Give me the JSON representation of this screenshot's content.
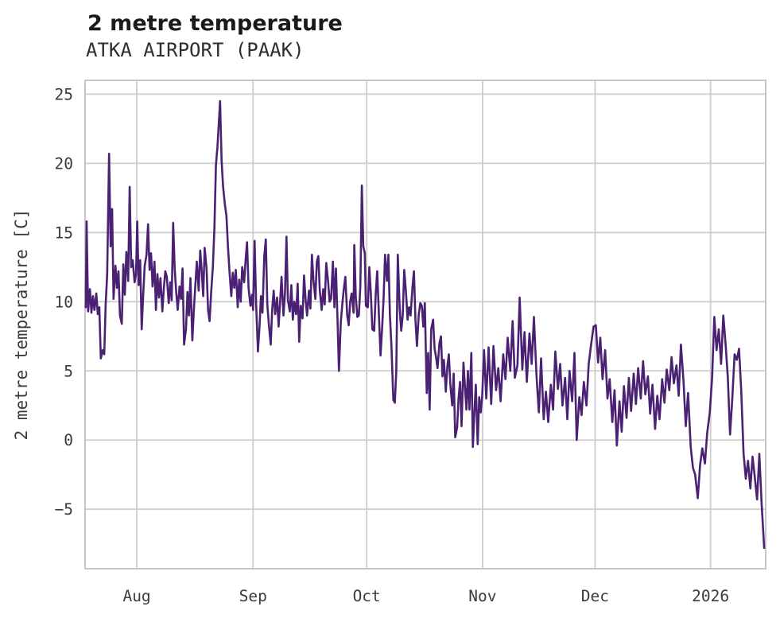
{
  "chart_data": {
    "type": "line",
    "title": "2 metre temperature",
    "subtitle": "ATKA AIRPORT (PAAK)",
    "xlabel": "",
    "ylabel": "2 metre temperature [C]",
    "x_unit": "days from start of plot (left edge ≈ mid-July 2025, right edge ≈ mid-January 2026)",
    "xlim": [
      0,
      181.5
    ],
    "ylim": [
      -9.3,
      26.0
    ],
    "grid": true,
    "legend": "none",
    "line_color": "#4b2173",
    "grid_color": "#cdcdcd",
    "background_color": "#ffffff",
    "y_ticks": [
      {
        "value": -5,
        "label": "−5"
      },
      {
        "value": 0,
        "label": "0"
      },
      {
        "value": 5,
        "label": "5"
      },
      {
        "value": 10,
        "label": "10"
      },
      {
        "value": 15,
        "label": "15"
      },
      {
        "value": 20,
        "label": "20"
      },
      {
        "value": 25,
        "label": "25"
      }
    ],
    "x_ticks": [
      {
        "day": 13.8,
        "label": "Aug"
      },
      {
        "day": 44.8,
        "label": "Sep"
      },
      {
        "day": 75.1,
        "label": "Oct"
      },
      {
        "day": 106.0,
        "label": "Nov"
      },
      {
        "day": 136.0,
        "label": "Dec"
      },
      {
        "day": 166.8,
        "label": "2026"
      }
    ],
    "series": [
      {
        "name": "2 metre temperature",
        "days": [
          0.2,
          0.4,
          0.8,
          1.3,
          1.7,
          2.1,
          2.5,
          3.0,
          3.4,
          3.8,
          4.2,
          4.7,
          5.1,
          5.5,
          5.9,
          6.4,
          6.8,
          7.2,
          7.6,
          8.1,
          8.5,
          8.9,
          9.3,
          9.8,
          10.2,
          10.6,
          11.0,
          11.5,
          11.9,
          12.3,
          12.7,
          13.2,
          13.6,
          13.9,
          14.3,
          14.7,
          15.1,
          15.5,
          15.9,
          16.4,
          16.8,
          17.2,
          17.6,
          18.0,
          18.5,
          18.9,
          19.3,
          19.7,
          20.1,
          20.6,
          21.0,
          21.4,
          21.8,
          22.3,
          22.7,
          23.1,
          23.5,
          23.9,
          24.3,
          24.7,
          25.2,
          25.6,
          26.0,
          26.4,
          26.9,
          27.3,
          27.7,
          28.1,
          28.6,
          29.0,
          29.4,
          29.8,
          30.3,
          30.7,
          31.1,
          31.5,
          31.9,
          32.4,
          32.8,
          33.2,
          33.6,
          34.1,
          34.5,
          34.9,
          35.3,
          35.7,
          36.0,
          36.4,
          36.8,
          37.3,
          37.7,
          38.1,
          38.5,
          39.0,
          39.4,
          39.8,
          40.2,
          40.7,
          41.1,
          41.5,
          41.9,
          42.4,
          42.8,
          43.2,
          43.6,
          44.1,
          44.5,
          44.8,
          45.2,
          45.6,
          46.1,
          46.5,
          46.9,
          47.3,
          47.8,
          48.2,
          48.6,
          49.0,
          49.5,
          49.9,
          50.3,
          50.7,
          51.2,
          51.6,
          52.0,
          52.4,
          52.9,
          53.3,
          53.7,
          54.1,
          54.6,
          55.0,
          55.4,
          55.8,
          56.3,
          56.7,
          57.1,
          57.5,
          58.0,
          58.4,
          58.8,
          59.2,
          59.7,
          60.1,
          60.5,
          60.9,
          61.4,
          61.8,
          62.2,
          62.6,
          63.1,
          63.5,
          63.9,
          64.3,
          64.8,
          65.2,
          65.6,
          66.1,
          66.5,
          66.9,
          67.3,
          67.7,
          68.2,
          68.6,
          69.0,
          69.4,
          69.9,
          70.3,
          70.7,
          71.1,
          71.6,
          71.8,
          72.2,
          72.6,
          73.0,
          73.4,
          73.8,
          74.2,
          74.6,
          74.9,
          75.4,
          75.8,
          76.2,
          76.6,
          77.1,
          77.5,
          77.9,
          78.3,
          78.8,
          79.2,
          79.6,
          80.0,
          80.5,
          80.9,
          81.3,
          81.7,
          82.2,
          82.6,
          83.0,
          83.4,
          83.9,
          84.3,
          84.7,
          85.1,
          85.6,
          86.0,
          86.4,
          86.8,
          87.3,
          87.7,
          88.1,
          88.5,
          89.0,
          89.4,
          89.8,
          90.2,
          90.6,
          91.1,
          91.5,
          91.9,
          92.3,
          92.8,
          93.2,
          93.6,
          94.0,
          94.5,
          94.9,
          95.3,
          95.7,
          96.2,
          96.6,
          97.0,
          97.4,
          97.9,
          98.3,
          98.7,
          99.2,
          99.6,
          100.0,
          100.4,
          100.9,
          101.3,
          101.7,
          102.1,
          102.5,
          103.0,
          103.4,
          103.8,
          104.2,
          104.7,
          105.1,
          105.5,
          105.9,
          106.4,
          107.0,
          107.6,
          108.3,
          108.9,
          109.6,
          110.2,
          110.8,
          111.5,
          112.1,
          112.7,
          113.4,
          114.0,
          114.6,
          115.3,
          115.9,
          116.6,
          117.2,
          117.8,
          118.5,
          119.1,
          119.7,
          120.4,
          121.0,
          121.6,
          122.3,
          122.9,
          123.5,
          124.2,
          124.8,
          125.4,
          126.1,
          126.7,
          127.3,
          128.0,
          128.6,
          129.2,
          129.9,
          130.5,
          131.1,
          131.8,
          132.4,
          133.0,
          133.7,
          134.3,
          134.9,
          135.6,
          136.2,
          136.8,
          137.4,
          138.0,
          138.7,
          139.3,
          139.9,
          140.6,
          141.2,
          141.8,
          142.5,
          143.1,
          143.7,
          144.4,
          145.0,
          145.6,
          146.3,
          146.9,
          147.5,
          148.2,
          148.8,
          149.4,
          150.1,
          150.7,
          151.3,
          152.0,
          152.6,
          153.2,
          153.9,
          154.5,
          155.1,
          155.8,
          156.4,
          157.0,
          157.7,
          158.3,
          158.9,
          159.6,
          160.2,
          160.8,
          161.5,
          162.1,
          162.7,
          163.4,
          164.0,
          164.6,
          165.3,
          165.9,
          166.6,
          167.2,
          167.8,
          168.4,
          169.0,
          169.6,
          170.2,
          170.8,
          171.4,
          172.0,
          172.6,
          173.2,
          173.8,
          174.4,
          175.0,
          175.6,
          176.2,
          176.8,
          177.4,
          178.0,
          178.6,
          179.2,
          179.8,
          180.4,
          181.1
        ],
        "temps": [
          9.6,
          15.8,
          9.3,
          10.9,
          9.2,
          10.4,
          9.4,
          10.6,
          9.1,
          9.6,
          5.9,
          6.5,
          6.2,
          9.8,
          12.0,
          20.7,
          14.0,
          16.7,
          10.2,
          12.6,
          11.0,
          12.2,
          9.0,
          8.4,
          12.7,
          10.5,
          13.6,
          11.5,
          18.3,
          12.5,
          13.0,
          11.4,
          12.0,
          15.8,
          11.2,
          13.0,
          8.0,
          10.5,
          12.6,
          13.4,
          15.6,
          12.3,
          13.5,
          11.1,
          12.9,
          9.4,
          12.0,
          10.3,
          11.7,
          9.3,
          10.9,
          12.2,
          11.8,
          9.9,
          11.4,
          10.1,
          15.7,
          12.4,
          10.7,
          9.4,
          11.1,
          10.2,
          12.4,
          6.9,
          8.0,
          10.7,
          9.0,
          11.7,
          7.2,
          9.4,
          11.2,
          12.9,
          10.8,
          13.7,
          12.2,
          10.4,
          13.9,
          12.4,
          9.4,
          8.6,
          10.6,
          12.6,
          15.4,
          19.9,
          21.2,
          23.1,
          24.5,
          20.2,
          18.3,
          17.0,
          16.2,
          14.0,
          12.2,
          10.4,
          12.1,
          11.0,
          12.3,
          9.6,
          11.6,
          10.0,
          12.5,
          11.4,
          13.0,
          14.3,
          11.0,
          9.7,
          10.5,
          9.4,
          14.4,
          9.9,
          6.4,
          8.1,
          10.4,
          9.2,
          13.3,
          14.5,
          9.8,
          8.4,
          6.9,
          9.4,
          10.8,
          9.1,
          10.3,
          8.2,
          9.9,
          11.8,
          9.0,
          10.6,
          14.7,
          10.1,
          9.3,
          11.2,
          8.7,
          10.0,
          9.1,
          11.3,
          7.1,
          9.7,
          8.8,
          11.9,
          10.2,
          9.0,
          10.8,
          9.5,
          13.4,
          11.6,
          10.2,
          12.9,
          13.3,
          10.8,
          9.4,
          10.9,
          9.8,
          12.8,
          11.5,
          10.0,
          10.2,
          12.9,
          9.6,
          12.4,
          8.9,
          5.0,
          8.5,
          9.8,
          10.9,
          11.8,
          9.0,
          8.3,
          10.0,
          10.6,
          9.2,
          14.1,
          10.3,
          8.9,
          9.0,
          11.1,
          18.4,
          14.0,
          13.5,
          9.7,
          9.6,
          12.5,
          10.6,
          8.0,
          7.9,
          10.5,
          12.2,
          9.4,
          6.1,
          8.0,
          10.2,
          13.4,
          11.5,
          13.4,
          9.0,
          6.8,
          2.9,
          2.7,
          5.0,
          13.4,
          9.5,
          7.9,
          9.0,
          12.3,
          10.6,
          8.7,
          9.6,
          9.0,
          11.0,
          12.2,
          8.7,
          6.8,
          9.1,
          9.9,
          9.7,
          8.2,
          9.9,
          3.4,
          6.3,
          2.2,
          8.0,
          8.7,
          6.6,
          6.0,
          5.2,
          7.0,
          7.5,
          4.6,
          5.8,
          3.5,
          5.3,
          6.2,
          4.0,
          2.5,
          4.8,
          0.2,
          0.9,
          3.0,
          4.2,
          1.0,
          5.6,
          3.8,
          2.2,
          5.0,
          2.2,
          6.3,
          -0.5,
          1.8,
          4.0,
          -0.3,
          3.1,
          2.0,
          3.2,
          6.5,
          3.0,
          6.7,
          2.6,
          6.8,
          3.6,
          5.2,
          2.8,
          6.2,
          4.4,
          7.4,
          5.0,
          8.6,
          4.5,
          5.4,
          10.3,
          5.1,
          7.8,
          4.2,
          7.7,
          5.5,
          8.9,
          4.6,
          2.0,
          5.9,
          1.5,
          3.5,
          1.3,
          4.0,
          2.2,
          6.4,
          3.7,
          5.5,
          2.5,
          4.5,
          1.5,
          5.0,
          2.8,
          6.3,
          0.0,
          3.1,
          1.8,
          4.2,
          2.5,
          5.5,
          6.8,
          8.2,
          8.3,
          5.6,
          7.4,
          4.4,
          6.5,
          3.0,
          4.4,
          1.3,
          3.6,
          -0.4,
          2.8,
          0.6,
          3.9,
          1.6,
          4.5,
          2.1,
          4.8,
          2.6,
          5.2,
          3.0,
          5.7,
          3.3,
          4.6,
          1.9,
          4.0,
          0.8,
          3.2,
          1.5,
          4.4,
          2.7,
          5.1,
          3.6,
          6.0,
          4.1,
          5.4,
          3.2,
          6.9,
          4.2,
          1.0,
          3.4,
          -0.5,
          -2.0,
          -2.5,
          -4.2,
          -1.8,
          -0.6,
          -1.7,
          0.5,
          2.0,
          4.5,
          8.9,
          6.5,
          8.0,
          5.5,
          9.0,
          7.0,
          4.5,
          0.4,
          3.0,
          6.2,
          5.8,
          6.6,
          3.5,
          -1.0,
          -2.8,
          -1.5,
          -3.5,
          -1.2,
          -2.7,
          -4.3,
          -1.0,
          -4.5,
          -7.8
        ]
      }
    ]
  }
}
